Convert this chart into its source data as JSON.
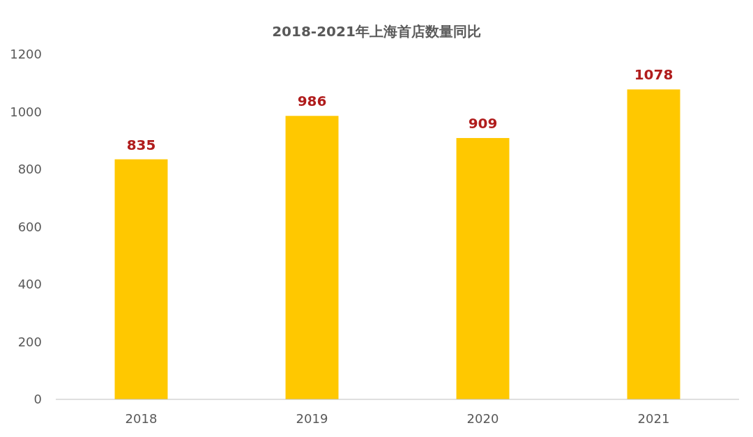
{
  "chart_data": {
    "type": "bar",
    "title": "2018-2021年上海首店数量同比",
    "categories": [
      "2018",
      "2019",
      "2020",
      "2021"
    ],
    "values": [
      835,
      986,
      909,
      1078
    ],
    "color": "#ffc800",
    "ylim": [
      0,
      1200
    ],
    "yticks": [
      0,
      200,
      400,
      600,
      800,
      1000,
      1200
    ],
    "grid": false,
    "data_labels": true
  }
}
